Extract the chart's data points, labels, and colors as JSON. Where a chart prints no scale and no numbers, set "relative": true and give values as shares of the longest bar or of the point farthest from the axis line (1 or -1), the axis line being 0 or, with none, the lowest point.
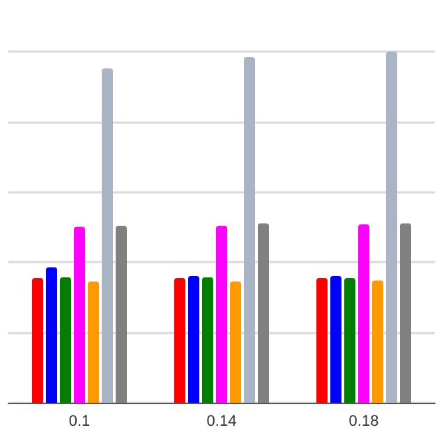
{
  "chart_data": {
    "type": "bar",
    "relative": true,
    "grid": "y",
    "categories": [
      "0.1",
      "0.14",
      "0.18"
    ],
    "series": [
      {
        "color": "#ff0000",
        "values": [
          0.355,
          0.355,
          0.355
        ]
      },
      {
        "color": "#0000ff",
        "values": [
          0.386,
          0.361,
          0.361
        ]
      },
      {
        "color": "#007f00",
        "values": [
          0.357,
          0.357,
          0.355
        ]
      },
      {
        "color": "#ff00ff",
        "values": [
          0.501,
          0.504,
          0.508
        ]
      },
      {
        "color": "#ff9900",
        "values": [
          0.345,
          0.345,
          0.348
        ]
      },
      {
        "color": "#a9b4c4",
        "values": [
          0.952,
          0.984,
          1
        ]
      },
      {
        "color": "#808080",
        "values": [
          0.504,
          0.511,
          0.511
        ]
      }
    ]
  }
}
